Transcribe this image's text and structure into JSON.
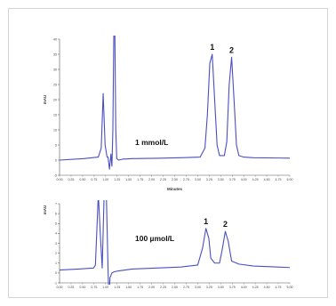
{
  "chart_data": [
    {
      "type": "line",
      "title": "",
      "xlabel": "Minutes",
      "ylabel": "mAU",
      "xlim": [
        0.0,
        4.75
      ],
      "ylim": [
        -5,
        40
      ],
      "x_ticks": [
        "0.00",
        "0.25",
        "0.50",
        "0.75",
        "1.00",
        "1.25",
        "1.50",
        "1.75",
        "2.00",
        "2.25",
        "2.50",
        "2.75",
        "3.00",
        "3.25",
        "3.50",
        "3.75",
        "4.00",
        "4.25",
        "4.50",
        "4.75",
        "5.00"
      ],
      "y_ticks": [
        "-5",
        "0",
        "5",
        "10",
        "15",
        "20",
        "25",
        "30",
        "35",
        "40"
      ],
      "annotation": "1 mmol/L",
      "color": "#4a4fc0",
      "series": [
        {
          "x": [
            0.0,
            0.5,
            0.8,
            0.86,
            0.9,
            0.94,
            0.98,
            1.0,
            1.03,
            1.06,
            1.08,
            1.1,
            1.12,
            1.14,
            1.16,
            1.18,
            1.22,
            1.3,
            1.5,
            2.0,
            2.5,
            2.9,
            3.0,
            3.05,
            3.1,
            3.15,
            3.2,
            3.25,
            3.3,
            3.4,
            3.45,
            3.5,
            3.55,
            3.6,
            3.65,
            3.7,
            3.8,
            4.0,
            4.5,
            5.0
          ],
          "y": [
            0,
            0.5,
            1,
            4,
            22,
            5,
            1,
            1,
            -3,
            2,
            -2,
            10,
            42,
            44,
            10,
            0.5,
            0,
            0.3,
            0.5,
            0.6,
            0.8,
            1,
            4,
            15,
            32,
            35,
            20,
            5,
            1.5,
            1.5,
            6,
            25,
            34,
            20,
            5,
            1.5,
            1,
            0.8,
            0.7,
            0.6
          ]
        }
      ],
      "peaks": [
        {
          "label": "1",
          "x": 3.15,
          "y": 35
        },
        {
          "label": "2",
          "x": 3.55,
          "y": 34
        }
      ]
    },
    {
      "type": "line",
      "title": "",
      "xlabel": "",
      "ylabel": "mAU",
      "xlim": [
        0.0,
        4.75
      ],
      "ylim": [
        -1,
        7
      ],
      "x_ticks": [
        "0.00",
        "0.25",
        "0.50",
        "0.75",
        "1.00",
        "1.25",
        "1.50",
        "1.75",
        "2.00",
        "2.25",
        "2.50",
        "2.75",
        "3.00",
        "3.25",
        "3.50",
        "3.75",
        "4.00",
        "4.25",
        "4.50",
        "4.75",
        "5.00"
      ],
      "y_ticks": [
        "-1",
        "0",
        "1",
        "2",
        "3",
        "4",
        "5",
        "6",
        "7"
      ],
      "annotation": "100 µmol/L",
      "color": "#4a4fc0",
      "series": [
        {
          "x": [
            0.0,
            0.4,
            0.7,
            0.74,
            0.8,
            0.84,
            0.88,
            0.92,
            0.96,
            1.0,
            1.02,
            1.04,
            1.08,
            1.12,
            1.2,
            1.5,
            2.0,
            2.5,
            2.85,
            2.95,
            3.02,
            3.08,
            3.12,
            3.2,
            3.3,
            3.35,
            3.42,
            3.48,
            3.55,
            3.7,
            4.0,
            4.5,
            5.0
          ],
          "y": [
            0.3,
            0.4,
            0.5,
            0.8,
            8,
            4,
            0.5,
            8,
            9,
            0.5,
            -3,
            -0.5,
            0,
            0.1,
            0.2,
            0.4,
            0.5,
            0.6,
            0.8,
            2.5,
            4.5,
            3.5,
            1.5,
            1,
            1,
            2.2,
            4.2,
            3.2,
            1.2,
            0.9,
            0.7,
            0.6,
            0.5
          ]
        }
      ],
      "peaks": [
        {
          "label": "1",
          "x": 3.02,
          "y": 4.5
        },
        {
          "label": "2",
          "x": 3.42,
          "y": 4.2
        }
      ]
    }
  ]
}
